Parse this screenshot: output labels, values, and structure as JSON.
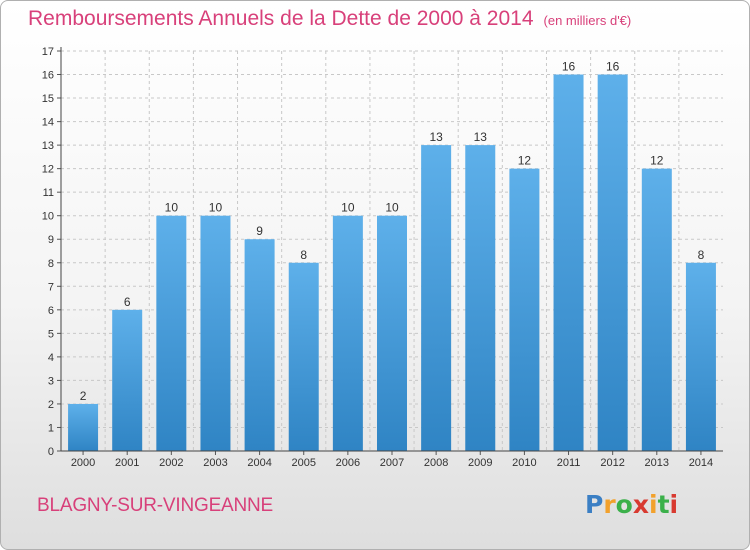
{
  "title": "Remboursements Annuels de la Dette de 2000 à 2014",
  "unit_label": "(en milliers d'€)",
  "city": "BLAGNY-SUR-VINGEANNE",
  "logo": {
    "letters": [
      "P",
      "r",
      "o",
      "x",
      "i",
      "t",
      "i"
    ],
    "colors": [
      "#3b7fc4",
      "#f2a12c",
      "#3bb04a",
      "#d83a30",
      "#f2a12c",
      "#3bb04a",
      "#d83a30"
    ]
  },
  "colors": {
    "bar_top": "#5eb0ea",
    "bar_bottom": "#2f84c4",
    "title": "#d8407a",
    "grid": "#c8c8c8"
  },
  "chart_data": {
    "type": "bar",
    "title": "Remboursements Annuels de la Dette de 2000 à 2014",
    "xlabel": "",
    "ylabel": "",
    "categories": [
      "2000",
      "2001",
      "2002",
      "2003",
      "2004",
      "2005",
      "2006",
      "2007",
      "2008",
      "2009",
      "2010",
      "2011",
      "2012",
      "2013",
      "2014"
    ],
    "values": [
      2,
      6,
      10,
      10,
      9,
      8,
      10,
      10,
      13,
      13,
      12,
      16,
      16,
      12,
      8
    ],
    "data_labels": [
      "2",
      "6",
      "10",
      "10",
      "9",
      "8",
      "10",
      "10",
      "13",
      "13",
      "12",
      "16",
      "16",
      "12",
      "8"
    ],
    "ylim": [
      0,
      17
    ],
    "yticks": [
      0,
      1,
      2,
      3,
      4,
      5,
      6,
      7,
      8,
      9,
      10,
      11,
      12,
      13,
      14,
      15,
      16,
      17
    ],
    "ytick_labels": [
      "0",
      "1",
      "2",
      "3",
      "4",
      "5",
      "6",
      "7",
      "8",
      "9",
      "10",
      "11",
      "12",
      "13",
      "14",
      "15",
      "16",
      "17"
    ],
    "grid": true
  }
}
